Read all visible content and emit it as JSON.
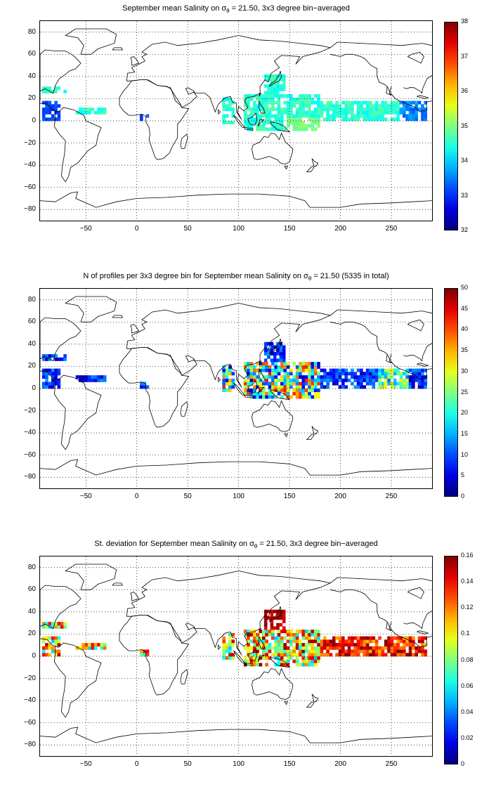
{
  "panels": [
    {
      "title_main": "September mean Salinity on σ",
      "title_sub": "θ",
      "title_rest": " = 21.50, 3x3 degree bin−averaged",
      "colorbar": {
        "ticks": [
          "38",
          "37",
          "36",
          "35",
          "34",
          "33",
          "32"
        ],
        "min": 32,
        "max": 38
      },
      "colormap": "jet"
    },
    {
      "title_main": "N of profiles per 3x3 degree bin for September mean Salinity on σ",
      "title_sub": "θ",
      "title_rest": " = 21.50 (5335 in total)",
      "colorbar": {
        "ticks": [
          "50",
          "45",
          "40",
          "35",
          "30",
          "25",
          "20",
          "15",
          "10",
          "5",
          "0"
        ],
        "min": 0,
        "max": 50
      },
      "colormap": "jet"
    },
    {
      "title_main": "St. deviation for September mean Salinity on σ",
      "title_sub": "θ",
      "title_rest": " = 21.50, 3x3 degree bin−averaged",
      "colorbar": {
        "ticks": [
          "0.16",
          "0.14",
          "0.12",
          "0.1",
          "0.08",
          "0.06",
          "0.04",
          "0.02",
          "0"
        ],
        "min": 0,
        "max": 0.16
      },
      "colormap": "jet"
    }
  ],
  "axes": {
    "x_ticks": [
      "−50",
      "0",
      "50",
      "100",
      "150",
      "200",
      "250"
    ],
    "y_ticks": [
      "80",
      "60",
      "40",
      "20",
      "0",
      "−20",
      "−40",
      "−60",
      "−80"
    ],
    "xlim": [
      -95,
      290
    ],
    "ylim": [
      -90,
      90
    ]
  },
  "map_data": {
    "type": "heatmap",
    "bin_size_deg": 3,
    "regions": [
      {
        "name": "caribbean_pacific_coast",
        "lon": [
          -93,
          -75
        ],
        "lat": [
          0,
          16
        ]
      },
      {
        "name": "atlantic_north",
        "lon": [
          -93,
          -70
        ],
        "lat": [
          25,
          30
        ]
      },
      {
        "name": "atlantic_equatorial",
        "lon": [
          -60,
          -30
        ],
        "lat": [
          6,
          12
        ]
      },
      {
        "name": "gulf_of_guinea",
        "lon": [
          3,
          12
        ],
        "lat": [
          0,
          6
        ]
      },
      {
        "name": "bay_of_bengal",
        "lon": [
          84,
          96
        ],
        "lat": [
          -3,
          21
        ]
      },
      {
        "name": "western_pacific_warm_pool",
        "lon": [
          105,
          180
        ],
        "lat": [
          -9,
          24
        ]
      },
      {
        "name": "kuroshio",
        "lon": [
          125,
          145
        ],
        "lat": [
          24,
          42
        ]
      },
      {
        "name": "north_pacific_band",
        "lon": [
          180,
          285
        ],
        "lat": [
          0,
          18
        ]
      }
    ]
  }
}
